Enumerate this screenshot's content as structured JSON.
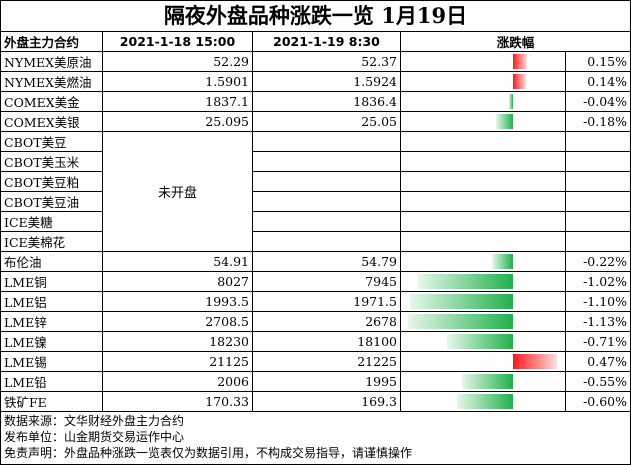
{
  "title": "隔夜外盘品种涨跌一览 1月19日",
  "headers": {
    "contract": "外盘主力合约",
    "date1": "2021-1-18 15:00",
    "date2": "2021-1-19 8:30",
    "change": "涨跌幅"
  },
  "closed_label": "未开盘",
  "rows": [
    {
      "name": "NYMEX美原油",
      "v1": "52.29",
      "v2": "52.37",
      "pct": "0.15%",
      "change": 0.15
    },
    {
      "name": "NYMEX美燃油",
      "v1": "1.5901",
      "v2": "1.5924",
      "pct": "0.14%",
      "change": 0.14
    },
    {
      "name": "COMEX美金",
      "v1": "1837.1",
      "v2": "1836.4",
      "pct": "-0.04%",
      "change": -0.04
    },
    {
      "name": "COMEX美银",
      "v1": "25.095",
      "v2": "25.05",
      "pct": "-0.18%",
      "change": -0.18
    },
    {
      "name": "CBOT美豆",
      "closed": true
    },
    {
      "name": "CBOT美玉米",
      "closed": true
    },
    {
      "name": "CBOT美豆粕",
      "closed": true
    },
    {
      "name": "CBOT美豆油",
      "closed": true
    },
    {
      "name": "ICE美糖",
      "closed": true
    },
    {
      "name": "ICE美棉花",
      "closed": true
    },
    {
      "name": "布伦油",
      "v1": "54.91",
      "v2": "54.79",
      "pct": "-0.22%",
      "change": -0.22
    },
    {
      "name": "LME铜",
      "v1": "8027",
      "v2": "7945",
      "pct": "-1.02%",
      "change": -1.02
    },
    {
      "name": "LME铝",
      "v1": "1993.5",
      "v2": "1971.5",
      "pct": "-1.10%",
      "change": -1.1
    },
    {
      "name": "LME锌",
      "v1": "2708.5",
      "v2": "2678",
      "pct": "-1.13%",
      "change": -1.13
    },
    {
      "name": "LME镍",
      "v1": "18230",
      "v2": "18100",
      "pct": "-0.71%",
      "change": -0.71
    },
    {
      "name": "LME锡",
      "v1": "21125",
      "v2": "21225",
      "pct": "0.47%",
      "change": 0.47
    },
    {
      "name": "LME铅",
      "v1": "2006",
      "v2": "1995",
      "pct": "-0.55%",
      "change": -0.55
    },
    {
      "name": "铁矿FE",
      "v1": "170.33",
      "v2": "169.3",
      "pct": "-0.60%",
      "change": -0.6
    }
  ],
  "colors": {
    "up": "#ff1a1a",
    "down": "#22b14c"
  },
  "footer": [
    "数据来源：文华财经外盘主力合约",
    "发布单位：山金期货交易运作中心",
    "免责声明：外盘品种涨跌一览表仅为数据引用，不构成交易指导，请谨慎操作"
  ]
}
